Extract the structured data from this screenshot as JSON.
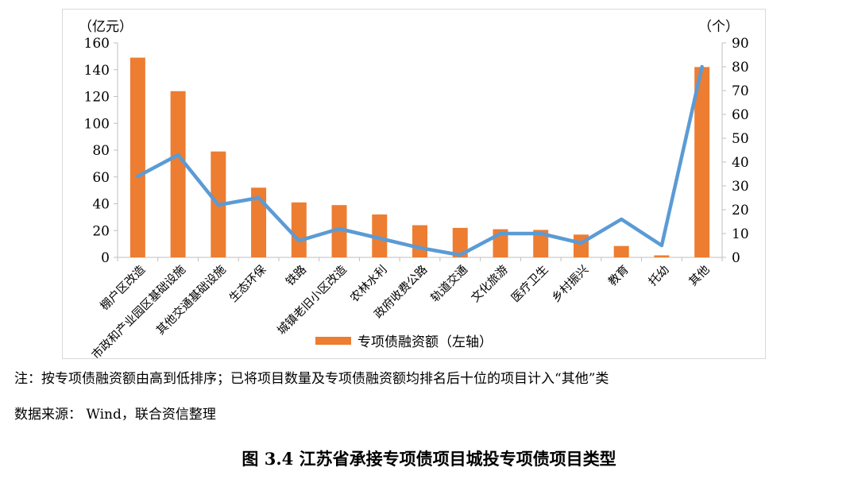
{
  "chart_data": {
    "type": "bar",
    "categories": [
      "棚户区改造",
      "市政和产业园区基础设施",
      "其他交通基础设施",
      "生态环保",
      "铁路",
      "城镇老旧小区改造",
      "农林水利",
      "政府收费公路",
      "轨道交通",
      "文化旅游",
      "医疗卫生",
      "乡村振兴",
      "教育",
      "托幼",
      "其他"
    ],
    "series": [
      {
        "name": "专项债融资额（左轴）",
        "type": "bar",
        "axis": "left",
        "values": [
          149,
          124,
          79,
          52,
          41,
          39,
          32,
          24,
          22,
          21,
          20.5,
          17,
          8.5,
          1.5,
          142
        ]
      },
      {
        "type": "line",
        "axis": "right",
        "values": [
          34,
          43,
          22,
          25,
          7,
          12,
          8,
          4,
          1,
          10,
          10,
          6,
          16,
          5,
          80
        ]
      }
    ],
    "y_left": {
      "unit_label": "（亿元）",
      "ylim": [
        0,
        160
      ],
      "ticks": [
        0,
        20,
        40,
        60,
        80,
        100,
        120,
        140,
        160
      ]
    },
    "y_right": {
      "unit_label": "（个）",
      "ylim": [
        0,
        90
      ],
      "ticks": [
        0,
        10,
        20,
        30,
        40,
        50,
        60,
        70,
        80,
        90
      ]
    },
    "grid": false,
    "legend_position": "bottom",
    "colors": {
      "bar": "#ED7D31",
      "line": "#5B9BD5",
      "axis": "#bfbfbf",
      "text": "#000000",
      "frame": "#d9d9d9"
    }
  },
  "note": "注：按专项债融资额由高到低排序；已将项目数量及专项债融资额均排名后十位的项目计入“其他”类",
  "source": "数据来源：  Wind，联合资信整理",
  "caption": "图 3.4    江苏省承接专项债项目城投专项债项目类型"
}
